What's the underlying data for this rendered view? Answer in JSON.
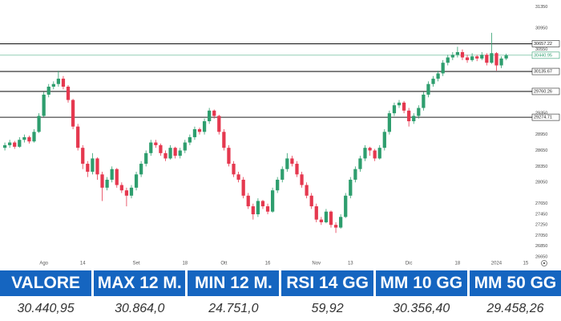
{
  "chart_data": {
    "type": "candlestick",
    "up_color": "#2e9e6e",
    "down_color": "#e5384f",
    "ylim": [
      26650,
      31450
    ],
    "yticks": [
      26650,
      26850,
      27050,
      27250,
      27450,
      27650,
      28050,
      28350,
      28650,
      28950,
      29350,
      30550,
      30950,
      31350
    ],
    "xlim": [
      -1,
      108
    ],
    "xticks": [
      {
        "value": 8,
        "label": "Ago"
      },
      {
        "value": 16,
        "label": "14"
      },
      {
        "value": 27,
        "label": "Set"
      },
      {
        "value": 37,
        "label": "18"
      },
      {
        "value": 45,
        "label": "Ott"
      },
      {
        "value": 54,
        "label": "16"
      },
      {
        "value": 64,
        "label": "Nov"
      },
      {
        "value": 71,
        "label": "13"
      },
      {
        "value": 83,
        "label": "Dic"
      },
      {
        "value": 93,
        "label": "18"
      },
      {
        "value": 101,
        "label": "2024"
      },
      {
        "value": 107,
        "label": "15"
      }
    ],
    "levels": [
      30657.22,
      30135.67,
      29760.26,
      29274.71
    ],
    "last_price": 30440.95,
    "ohlc": [
      [
        28700,
        28800,
        28650,
        28750
      ],
      [
        28750,
        28850,
        28700,
        28800
      ],
      [
        28800,
        28830,
        28680,
        28720
      ],
      [
        28720,
        28900,
        28700,
        28850
      ],
      [
        28850,
        28950,
        28800,
        28900
      ],
      [
        28900,
        28930,
        28780,
        28820
      ],
      [
        28820,
        29050,
        28800,
        29000
      ],
      [
        29000,
        29350,
        28980,
        29300
      ],
      [
        29300,
        29750,
        29280,
        29700
      ],
      [
        29700,
        29900,
        29650,
        29850
      ],
      [
        29850,
        29950,
        29800,
        29900
      ],
      [
        29900,
        30150,
        29850,
        30000
      ],
      [
        30000,
        30050,
        29800,
        29850
      ],
      [
        29850,
        29880,
        29550,
        29600
      ],
      [
        29600,
        29620,
        29050,
        29100
      ],
      [
        29100,
        29150,
        28650,
        28700
      ],
      [
        28700,
        28750,
        28300,
        28400
      ],
      [
        28400,
        28450,
        28150,
        28250
      ],
      [
        28250,
        28600,
        28200,
        28500
      ],
      [
        28500,
        28520,
        28100,
        28200
      ],
      [
        28200,
        28250,
        27700,
        27950
      ],
      [
        27950,
        28150,
        27900,
        28100
      ],
      [
        28100,
        28350,
        28050,
        28300
      ],
      [
        28300,
        28320,
        27950,
        28000
      ],
      [
        28000,
        28050,
        27850,
        27900
      ],
      [
        27900,
        27950,
        27600,
        27800
      ],
      [
        27800,
        28000,
        27750,
        27950
      ],
      [
        27950,
        28250,
        27900,
        28200
      ],
      [
        28200,
        28450,
        28150,
        28400
      ],
      [
        28400,
        28650,
        28350,
        28600
      ],
      [
        28600,
        28850,
        28550,
        28800
      ],
      [
        28800,
        28850,
        28700,
        28750
      ],
      [
        28750,
        28780,
        28550,
        28600
      ],
      [
        28600,
        28650,
        28450,
        28500
      ],
      [
        28500,
        28750,
        28480,
        28700
      ],
      [
        28700,
        28720,
        28500,
        28550
      ],
      [
        28550,
        28700,
        28500,
        28650
      ],
      [
        28650,
        28850,
        28600,
        28800
      ],
      [
        28800,
        28950,
        28750,
        28900
      ],
      [
        28900,
        29100,
        28850,
        29050
      ],
      [
        29050,
        29080,
        28950,
        29000
      ],
      [
        29000,
        29250,
        28950,
        29200
      ],
      [
        29200,
        29450,
        29150,
        29400
      ],
      [
        29400,
        29420,
        29250,
        29300
      ],
      [
        29300,
        29320,
        28950,
        29000
      ],
      [
        29000,
        29050,
        28650,
        28700
      ],
      [
        28700,
        28750,
        28350,
        28400
      ],
      [
        28400,
        28450,
        28150,
        28200
      ],
      [
        28200,
        28250,
        28050,
        28100
      ],
      [
        28100,
        28150,
        27750,
        27800
      ],
      [
        27800,
        27850,
        27550,
        27600
      ],
      [
        27600,
        27650,
        27350,
        27450
      ],
      [
        27450,
        27750,
        27400,
        27700
      ],
      [
        27700,
        27720,
        27550,
        27600
      ],
      [
        27600,
        27650,
        27450,
        27500
      ],
      [
        27500,
        27950,
        27480,
        27900
      ],
      [
        27900,
        28150,
        27850,
        28100
      ],
      [
        28100,
        28350,
        28050,
        28300
      ],
      [
        28300,
        28600,
        28250,
        28500
      ],
      [
        28500,
        28550,
        28350,
        28400
      ],
      [
        28400,
        28450,
        28150,
        28200
      ],
      [
        28200,
        28250,
        27950,
        28000
      ],
      [
        28000,
        28050,
        27750,
        27800
      ],
      [
        27800,
        27850,
        27550,
        27600
      ],
      [
        27600,
        27650,
        27300,
        27350
      ],
      [
        27350,
        27400,
        27250,
        27300
      ],
      [
        27300,
        27550,
        27280,
        27500
      ],
      [
        27500,
        27520,
        27200,
        27250
      ],
      [
        27250,
        27300,
        27100,
        27200
      ],
      [
        27200,
        27450,
        27180,
        27400
      ],
      [
        27400,
        27850,
        27380,
        27800
      ],
      [
        27800,
        28150,
        27750,
        28100
      ],
      [
        28100,
        28350,
        28050,
        28300
      ],
      [
        28300,
        28550,
        28250,
        28500
      ],
      [
        28500,
        28750,
        28450,
        28700
      ],
      [
        28700,
        28720,
        28550,
        28650
      ],
      [
        28650,
        28680,
        28450,
        28500
      ],
      [
        28500,
        28750,
        28480,
        28700
      ],
      [
        28700,
        29050,
        28650,
        29000
      ],
      [
        29000,
        29400,
        28950,
        29350
      ],
      [
        29350,
        29550,
        29300,
        29500
      ],
      [
        29500,
        29600,
        29450,
        29550
      ],
      [
        29550,
        29580,
        29350,
        29400
      ],
      [
        29400,
        29450,
        29100,
        29200
      ],
      [
        29200,
        29350,
        29150,
        29300
      ],
      [
        29300,
        29500,
        29250,
        29450
      ],
      [
        29450,
        29750,
        29400,
        29700
      ],
      [
        29700,
        29950,
        29650,
        29900
      ],
      [
        29900,
        30050,
        29850,
        30000
      ],
      [
        30000,
        30150,
        29950,
        30100
      ],
      [
        30100,
        30350,
        30050,
        30300
      ],
      [
        30300,
        30450,
        30250,
        30400
      ],
      [
        30400,
        30500,
        30350,
        30450
      ],
      [
        30450,
        30600,
        30400,
        30500
      ],
      [
        30500,
        30550,
        30350,
        30400
      ],
      [
        30400,
        30450,
        30300,
        30350
      ],
      [
        30350,
        30480,
        30320,
        30420
      ],
      [
        30420,
        30450,
        30330,
        30380
      ],
      [
        30380,
        30500,
        30350,
        30450
      ],
      [
        30450,
        30480,
        30250,
        30300
      ],
      [
        30300,
        30864,
        30280,
        30480
      ],
      [
        30480,
        30500,
        30150,
        30250
      ],
      [
        30250,
        30420,
        30200,
        30380
      ],
      [
        30380,
        30470,
        30350,
        30440.95
      ]
    ]
  },
  "table": {
    "header": [
      "VALORE",
      "MAX 12 M.",
      "MIN 12 M.",
      "RSI 14 GG",
      "MM 10 GG",
      "MM 50 GG"
    ],
    "rows": [
      [
        "30.440,95",
        "30.864,0",
        "24.751,0",
        "59,92",
        "30.356,40",
        "29.458,26"
      ]
    ]
  }
}
